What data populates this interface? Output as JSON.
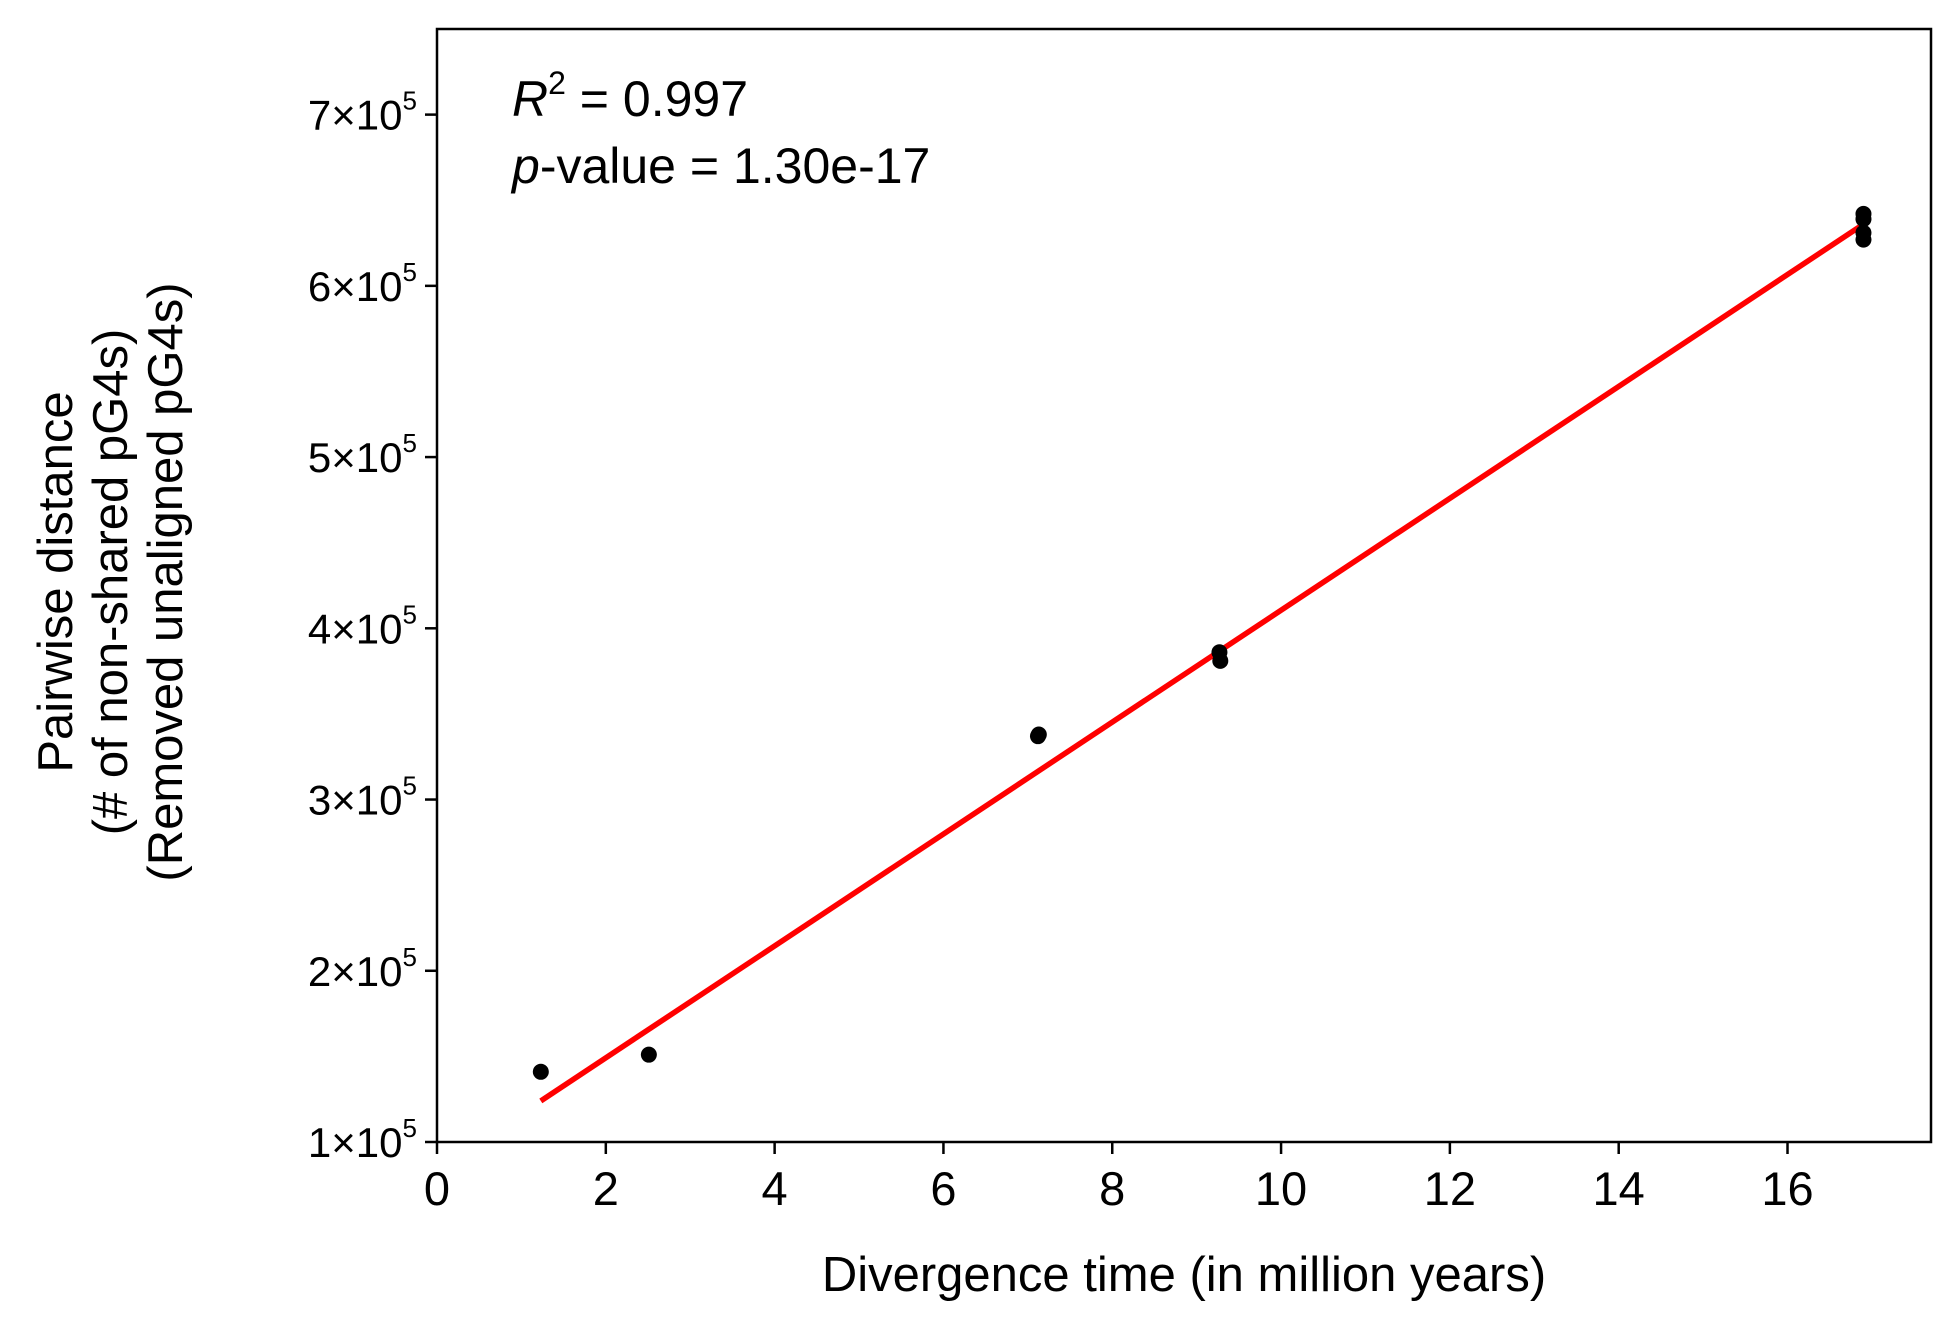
{
  "chart_data": {
    "type": "scatter",
    "xlabel": "Divergence time (in million years)",
    "ylabel_lines": [
      "Pairwise distance",
      "(# of non-shared pG4s)",
      "(Removed unaligned pG4s)"
    ],
    "xlim": [
      0,
      17.7
    ],
    "ylim": [
      100000,
      750000
    ],
    "x_ticks": [
      {
        "value": 0,
        "label": "0"
      },
      {
        "value": 2,
        "label": "2"
      },
      {
        "value": 4,
        "label": "4"
      },
      {
        "value": 6,
        "label": "6"
      },
      {
        "value": 8,
        "label": "8"
      },
      {
        "value": 10,
        "label": "10"
      },
      {
        "value": 12,
        "label": "12"
      },
      {
        "value": 14,
        "label": "14"
      },
      {
        "value": 16,
        "label": "16"
      }
    ],
    "y_ticks": [
      {
        "value": 100000,
        "mantissa": "1×10",
        "exp": "5"
      },
      {
        "value": 200000,
        "mantissa": "2×10",
        "exp": "5"
      },
      {
        "value": 300000,
        "mantissa": "3×10",
        "exp": "5"
      },
      {
        "value": 400000,
        "mantissa": "4×10",
        "exp": "5"
      },
      {
        "value": 500000,
        "mantissa": "5×10",
        "exp": "5"
      },
      {
        "value": 600000,
        "mantissa": "6×10",
        "exp": "5"
      },
      {
        "value": 700000,
        "mantissa": "7×10",
        "exp": "5"
      }
    ],
    "grid": false,
    "points": [
      {
        "x": 1.23,
        "y": 141000
      },
      {
        "x": 2.51,
        "y": 151000
      },
      {
        "x": 7.12,
        "y": 337000
      },
      {
        "x": 7.13,
        "y": 338000
      },
      {
        "x": 9.27,
        "y": 386000
      },
      {
        "x": 9.28,
        "y": 381000
      },
      {
        "x": 16.9,
        "y": 642000
      },
      {
        "x": 16.9,
        "y": 639000
      },
      {
        "x": 16.9,
        "y": 631000
      },
      {
        "x": 16.9,
        "y": 627000
      }
    ],
    "point_color": "#000000",
    "fit_line": {
      "x": [
        1.23,
        16.9
      ],
      "y": [
        124000,
        636000
      ],
      "color": "#ff0000"
    },
    "annotation": {
      "r2_symbol": "R",
      "r2_exp": "2",
      "r2_text": " = 0.997",
      "p_symbol": "p",
      "p_text": "-value = 1.30e-17"
    }
  }
}
